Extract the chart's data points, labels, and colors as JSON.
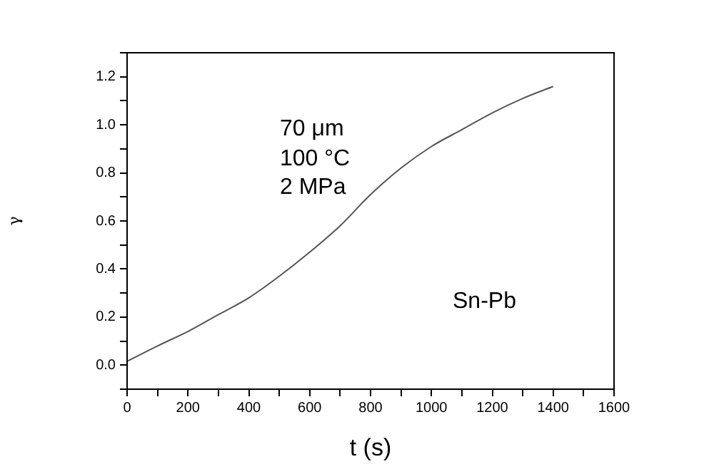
{
  "chart_data": {
    "type": "line",
    "xlabel": "t (s)",
    "ylabel": "γ",
    "x": [
      0,
      100,
      200,
      300,
      400,
      500,
      600,
      700,
      800,
      900,
      1000,
      1100,
      1200,
      1300,
      1400
    ],
    "series": [
      {
        "color": "#555555",
        "values": [
          0.016,
          0.08,
          0.14,
          0.21,
          0.28,
          0.37,
          0.47,
          0.58,
          0.71,
          0.82,
          0.91,
          0.98,
          1.05,
          1.11,
          1.16
        ]
      }
    ],
    "xlim": [
      0,
      1600
    ],
    "xticks": [
      0,
      {
        "value": 100,
        "label": null
      },
      200,
      {
        "value": 300,
        "label": null
      },
      400,
      {
        "value": 500,
        "label": null
      },
      600,
      {
        "value": 700,
        "label": null
      },
      800,
      {
        "value": 900,
        "label": null
      },
      1000,
      {
        "value": 1100,
        "label": null
      },
      1200,
      {
        "value": 1300,
        "label": null
      },
      1400,
      {
        "value": 1500,
        "label": null
      },
      1600
    ],
    "ylim": [
      -0.1,
      1.3
    ],
    "yticks": [
      {
        "value": -0.1,
        "label": null
      },
      {
        "value": 0,
        "label": "0.0"
      },
      {
        "value": 0.1,
        "label": null
      },
      0.2,
      {
        "value": 0.3,
        "label": null
      },
      0.4,
      {
        "value": 0.5,
        "label": null
      },
      0.6,
      {
        "value": 0.7,
        "label": null
      },
      0.8,
      {
        "value": 0.9,
        "label": null
      },
      {
        "value": 1,
        "label": "1.0"
      },
      {
        "value": 1.1,
        "label": null
      },
      1.2,
      {
        "value": 1.3,
        "label": null
      }
    ],
    "annotations": [
      "70 μm",
      "100 °C",
      "2 MPa",
      "Sn-Pb"
    ],
    "grid": false,
    "legend": false,
    "marker": "none",
    "line_style": "solid"
  }
}
